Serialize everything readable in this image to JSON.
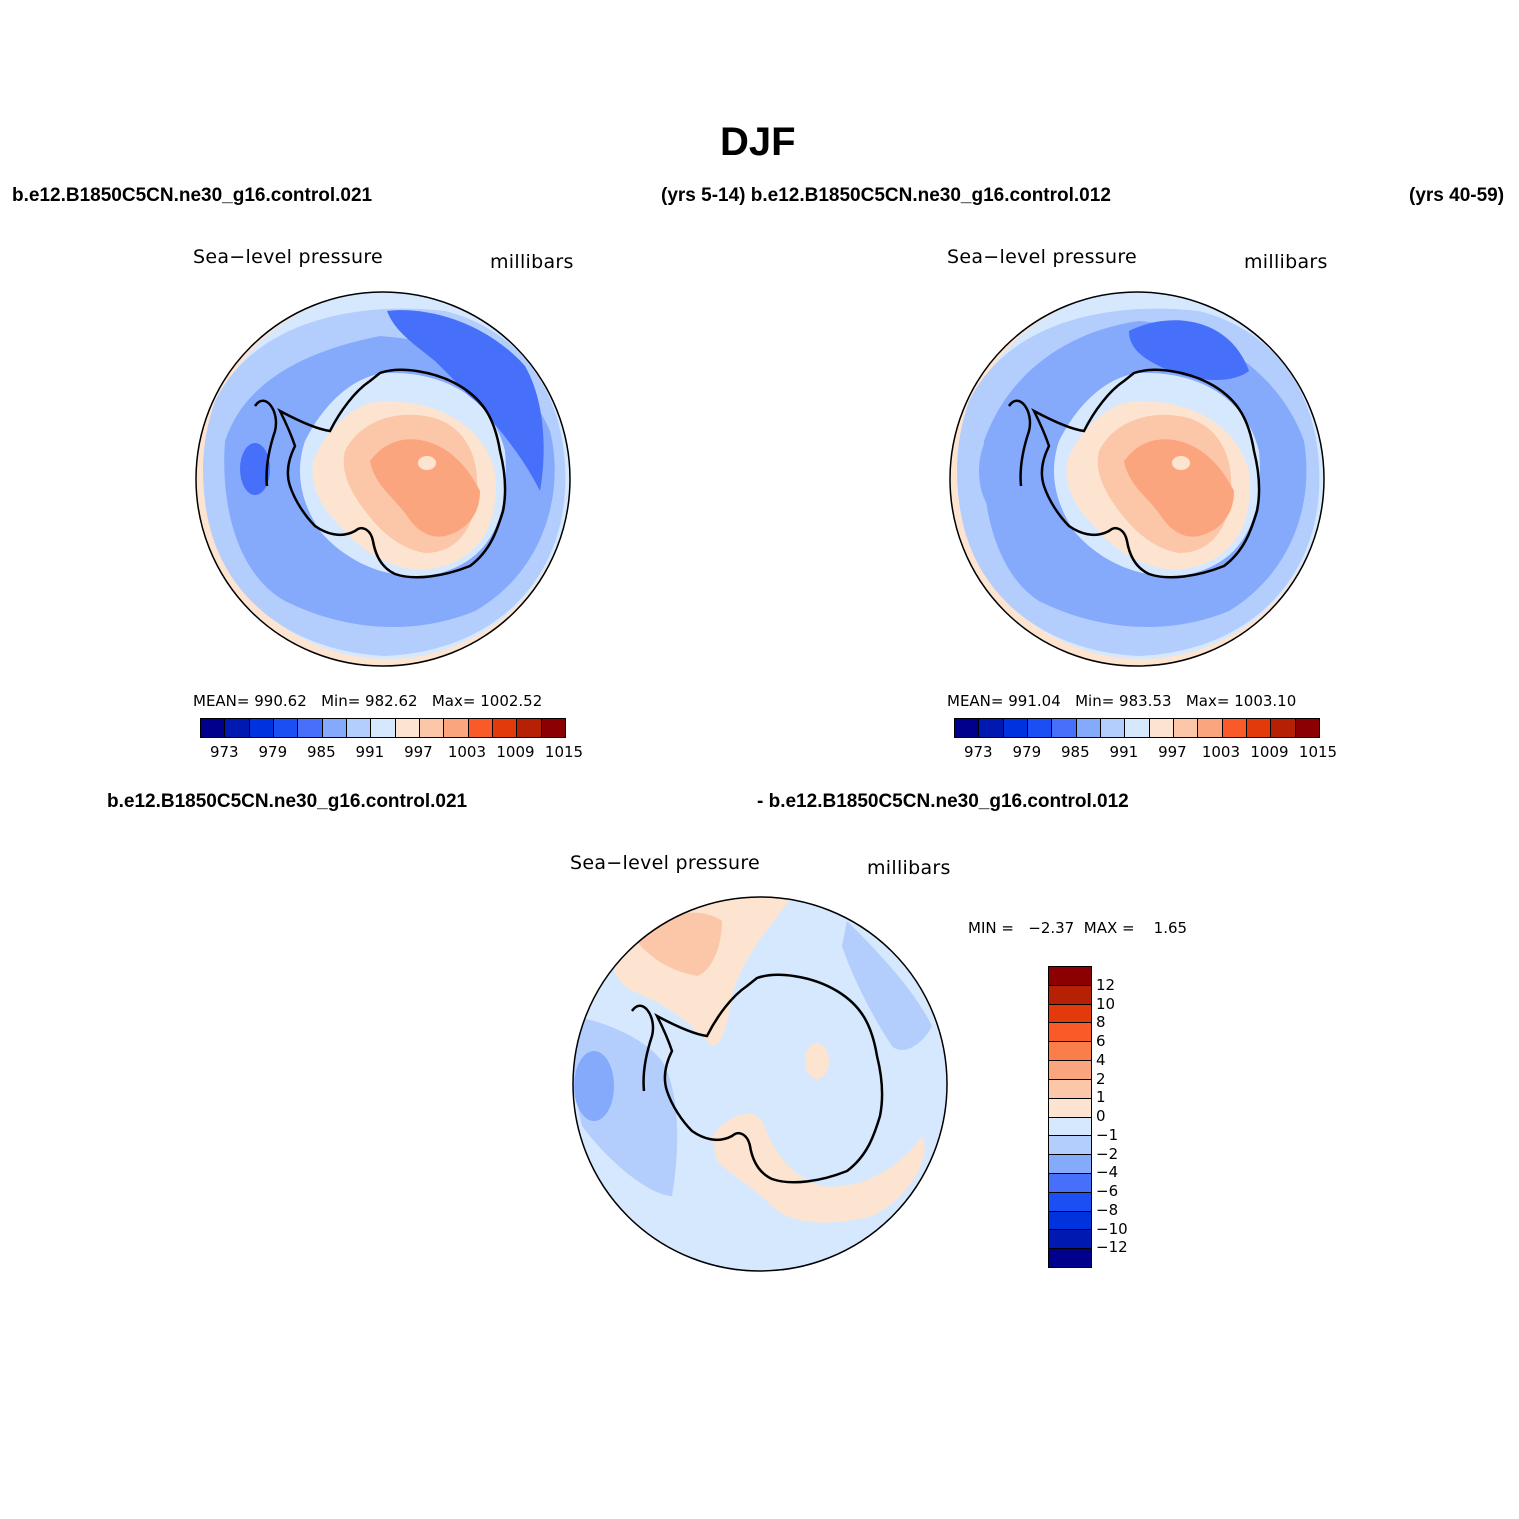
{
  "page_title": "DJF",
  "header": {
    "case_left": "b.e12.B1850C5CN.ne30_g16.control.021",
    "yrs_left_and_case_right": "(yrs 5-14) b.e12.B1850C5CN.ne30_g16.control.012",
    "yrs_right": "(yrs 40-59)"
  },
  "diff_header": {
    "left": "b.e12.B1850C5CN.ne30_g16.control.021",
    "right": "- b.e12.B1850C5CN.ne30_g16.control.012"
  },
  "colors": {
    "ocean_pale": "#d6e8fe",
    "ocean_light": "#b3cdfd",
    "ocean_mid": "#85aafc",
    "ocean_deep": "#4670f9",
    "land_pale": "#fde4d0",
    "land_light": "#fcc6a8",
    "land_mid": "#fba57f",
    "coast": "#000000"
  },
  "panel_left": {
    "field": "Sea−level pressure",
    "units": "millibars",
    "stats": {
      "mean_label": "MEAN=",
      "mean": "990.62",
      "min_label": "Min=",
      "min": "982.62",
      "max_label": "Max=",
      "max": "1002.52"
    }
  },
  "panel_right": {
    "field": "Sea−level pressure",
    "units": "millibars",
    "stats": {
      "mean_label": "MEAN=",
      "mean": "991.04",
      "min_label": "Min=",
      "min": "983.53",
      "max_label": "Max=",
      "max": "1003.10"
    }
  },
  "panel_diff": {
    "field": "Sea−level pressure",
    "units": "millibars",
    "minmax": {
      "min_label": "MIN =",
      "min": "−2.37",
      "max_label": "MAX =",
      "max": "1.65"
    }
  },
  "colorbar_abs": {
    "colors": [
      "#00008c",
      "#0019b0",
      "#0033dd",
      "#1b4ff3",
      "#4670f9",
      "#85aafc",
      "#b3cdfd",
      "#d6e8fe",
      "#fde4d0",
      "#fcc6a8",
      "#fba57f",
      "#fa5a28",
      "#e23a0a",
      "#b62005",
      "#8b0000"
    ],
    "tick_labels": [
      "973",
      "979",
      "985",
      "991",
      "997",
      "1003",
      "1009",
      "1015"
    ]
  },
  "colorbar_diff": {
    "colors_top_to_bottom": [
      "#8b0000",
      "#b62005",
      "#e23a0a",
      "#fa5a28",
      "#fb7d4a",
      "#fba57f",
      "#fcc6a8",
      "#fde4d0",
      "#d6e8fe",
      "#b3cdfd",
      "#85aafc",
      "#4670f9",
      "#1b4ff3",
      "#0033dd",
      "#0019b0",
      "#00008c"
    ],
    "tick_labels_top_to_bottom": [
      "12",
      "10",
      "8",
      "6",
      "4",
      "2",
      "1",
      "0",
      "−1",
      "−2",
      "−4",
      "−6",
      "−8",
      "−10",
      "−12"
    ]
  }
}
